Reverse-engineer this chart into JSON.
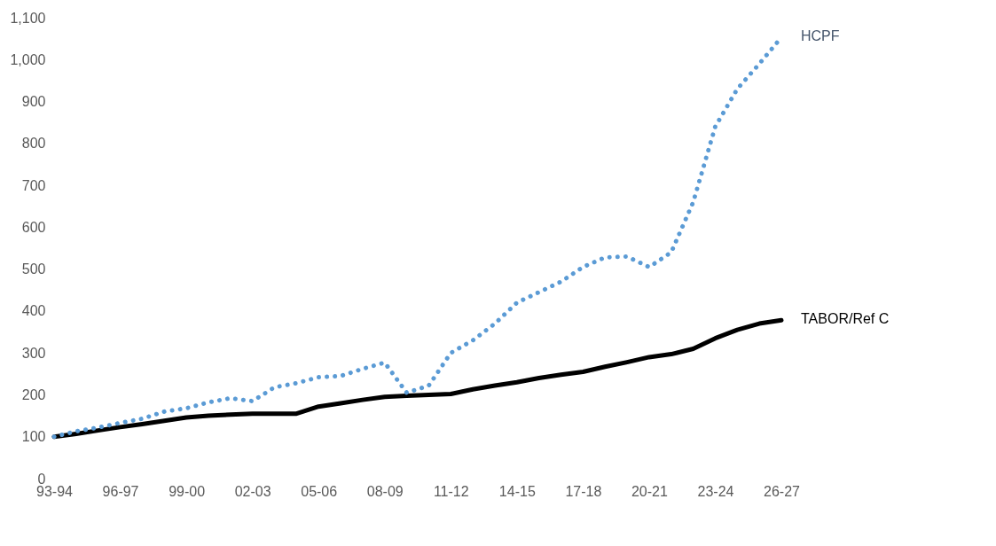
{
  "chart_data": {
    "type": "line",
    "categories": [
      "93-94",
      null,
      null,
      "96-97",
      null,
      null,
      "99-00",
      null,
      null,
      "02-03",
      null,
      null,
      "05-06",
      null,
      null,
      "08-09",
      null,
      null,
      "11-12",
      null,
      null,
      "14-15",
      null,
      null,
      "17-18",
      null,
      null,
      "20-21",
      null,
      null,
      "23-24",
      null,
      null,
      "26-27"
    ],
    "series": [
      {
        "name": "HCPF",
        "color": "#5b9bd5",
        "line_style": "dotted",
        "values": [
          100,
          113,
          122,
          133,
          143,
          160,
          168,
          182,
          192,
          185,
          218,
          228,
          242,
          245,
          262,
          277,
          205,
          222,
          300,
          330,
          370,
          420,
          445,
          470,
          505,
          528,
          530,
          505,
          540,
          660,
          840,
          930,
          990,
          1053
        ]
      },
      {
        "name": "TABOR/Ref C",
        "color": "#000000",
        "line_style": "solid",
        "values": [
          100,
          107,
          115,
          123,
          130,
          138,
          146,
          150,
          153,
          155,
          155,
          155,
          172,
          180,
          188,
          195,
          198,
          200,
          202,
          213,
          222,
          230,
          240,
          248,
          255,
          267,
          278,
          290,
          297,
          310,
          335,
          355,
          370,
          378
        ]
      }
    ],
    "ylim": [
      0,
      1100
    ],
    "yticks": [
      0,
      100,
      200,
      300,
      400,
      500,
      600,
      700,
      800,
      900,
      {
        "value": 1000,
        "label": "1,000"
      },
      {
        "value": 1100,
        "label": "1,100"
      }
    ],
    "grid": false,
    "legend": false,
    "marker": "none"
  }
}
